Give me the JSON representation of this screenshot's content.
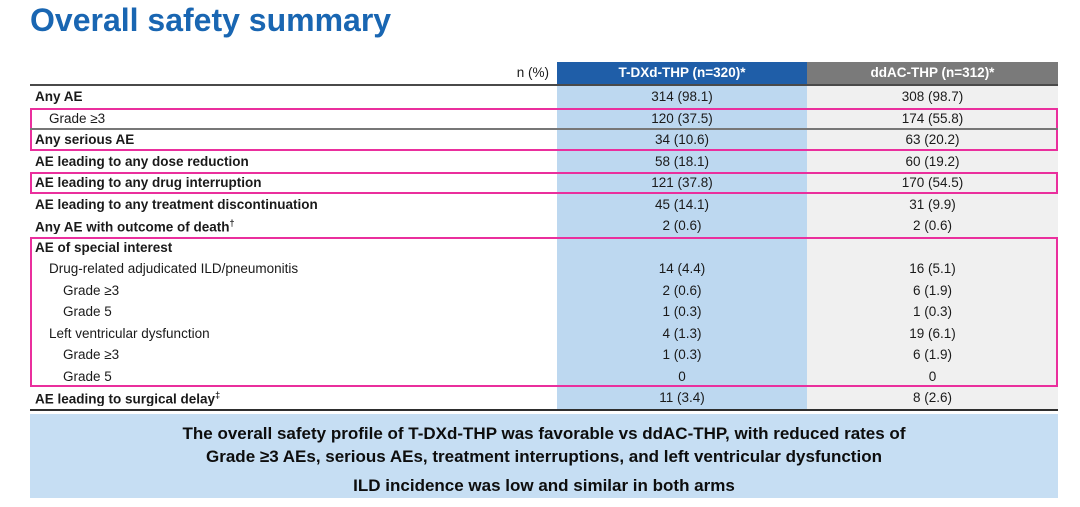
{
  "page": {
    "title": "Overall safety summary"
  },
  "colors": {
    "title_blue": "#1966b2",
    "arm1_header_bg": "#1f5ea8",
    "arm2_header_bg": "#7a7a7a",
    "arm1_column_bg": "#bdd8f0",
    "arm2_column_bg": "#f0f0f0",
    "highlight_pink": "#ea2f9d",
    "summary_box_bg": "#c6def3"
  },
  "table": {
    "unit_label": "n (%)",
    "columns": [
      {
        "label": "T-DXd-THP (n=320)*"
      },
      {
        "label": "ddAC-THP (n=312)*"
      }
    ],
    "rows": [
      {
        "label": "Any AE",
        "bold": true,
        "indent": 0,
        "v1": "314 (98.1)",
        "v2": "308 (98.7)"
      },
      {
        "label": "Grade ≥3",
        "bold": false,
        "indent": 1,
        "v1": "120 (37.5)",
        "v2": "174 (55.8)",
        "highlighted": true
      },
      {
        "label": "Any serious AE",
        "bold": true,
        "indent": 0,
        "v1": "34 (10.6)",
        "v2": "63 (20.2)",
        "highlighted": true
      },
      {
        "label": "AE leading to any dose reduction",
        "bold": true,
        "indent": 0,
        "v1": "58 (18.1)",
        "v2": "60 (19.2)"
      },
      {
        "label": "AE leading to any drug interruption",
        "bold": true,
        "indent": 0,
        "v1": "121 (37.8)",
        "v2": "170 (54.5)",
        "highlighted": true
      },
      {
        "label": "AE leading to any treatment discontinuation",
        "bold": true,
        "indent": 0,
        "v1": "45 (14.1)",
        "v2": "31 (9.9)"
      },
      {
        "label": "Any AE with outcome of death",
        "sup": "†",
        "bold": true,
        "indent": 0,
        "v1": "2 (0.6)",
        "v2": "2 (0.6)"
      },
      {
        "label": "AE of special interest",
        "bold": true,
        "indent": 0,
        "v1": "",
        "v2": "",
        "highlighted": true
      },
      {
        "label": "Drug-related adjudicated ILD/pneumonitis",
        "bold": false,
        "indent": 1,
        "v1": "14 (4.4)",
        "v2": "16 (5.1)",
        "highlighted": true
      },
      {
        "label": "Grade ≥3",
        "bold": false,
        "indent": 2,
        "v1": "2 (0.6)",
        "v2": "6 (1.9)",
        "highlighted": true
      },
      {
        "label": "Grade 5",
        "bold": false,
        "indent": 2,
        "v1": "1 (0.3)",
        "v2": "1 (0.3)",
        "highlighted": true
      },
      {
        "label": "Left ventricular dysfunction",
        "bold": false,
        "indent": 1,
        "v1": "4 (1.3)",
        "v2": "19 (6.1)",
        "highlighted": true
      },
      {
        "label": "Grade ≥3",
        "bold": false,
        "indent": 2,
        "v1": "1 (0.3)",
        "v2": "6 (1.9)",
        "highlighted": true
      },
      {
        "label": "Grade 5",
        "bold": false,
        "indent": 2,
        "v1": "0",
        "v2": "0",
        "highlighted": true
      },
      {
        "label": "AE leading to surgical delay",
        "sup": "‡",
        "bold": true,
        "indent": 0,
        "v1": "11 (3.4)",
        "v2": "8 (2.6)"
      }
    ]
  },
  "summary_box": {
    "lines": [
      "The overall safety profile of T-DXd-THP was favorable vs ddAC-THP, with reduced rates of",
      "Grade ≥3 AEs, serious AEs, treatment interruptions, and left ventricular dysfunction",
      "ILD incidence was low and similar in both arms"
    ]
  }
}
